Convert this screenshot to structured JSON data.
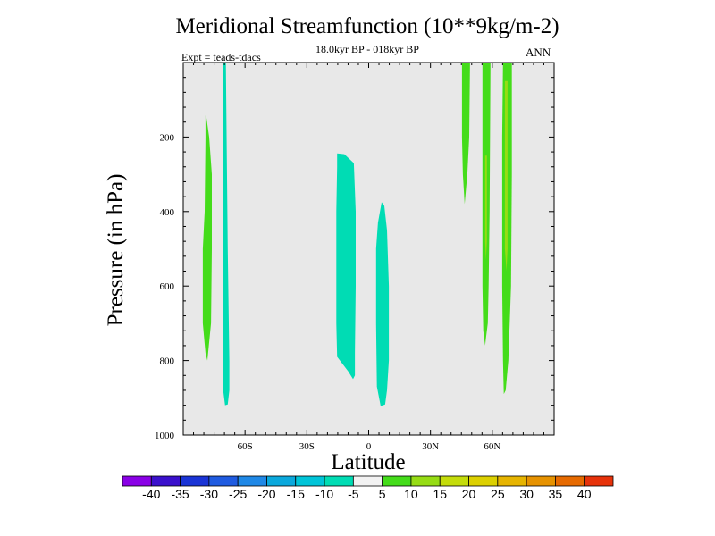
{
  "chart_data": {
    "type": "contour",
    "title": "Meridional Streamfunction (10**9kg/m-2)",
    "subtitle": "18.0kyr BP - 018kyr BP",
    "left_label": "Expt = teads-tdacs",
    "right_label": "ANN",
    "xlabel": "Latitude",
    "ylabel": "Pressure (in hPa)",
    "xlim": [
      -90,
      90
    ],
    "ylim": [
      1000,
      0
    ],
    "x_tick_values": [
      -60,
      -30,
      0,
      30,
      60
    ],
    "x_tick_labels": [
      "60S",
      "30S",
      "0",
      "30N",
      "60N"
    ],
    "y_tick_values": [
      200,
      400,
      600,
      800,
      1000
    ],
    "y_tick_labels": [
      "200",
      "400",
      "600",
      "800",
      "1000"
    ],
    "colorbar": {
      "labels": [
        "-40",
        "-35",
        "-30",
        "-25",
        "-20",
        "-15",
        "-10",
        "-5",
        "5",
        "10",
        "15",
        "20",
        "25",
        "30",
        "35",
        "40"
      ],
      "colors": [
        "#8a00e6",
        "#3a10cc",
        "#1a34d6",
        "#1f5be0",
        "#1f88e6",
        "#0aa8dc",
        "#00c4d8",
        "#00dcb4",
        "#f2f2f2",
        "#44dc1a",
        "#96dc14",
        "#c4dc0a",
        "#dcd000",
        "#e6b400",
        "#e69200",
        "#e66a00",
        "#e6320a"
      ]
    },
    "contour_regions": [
      {
        "name": "neg-high-lat-south",
        "level_range": "-10 to -5",
        "color": "#00dcb4",
        "points": [
          [
            -70.6,
            0
          ],
          [
            -69.3,
            0
          ],
          [
            -68.4,
            500
          ],
          [
            -67.6,
            800
          ],
          [
            -67.6,
            880
          ],
          [
            -68.4,
            918
          ],
          [
            -69.7,
            920
          ],
          [
            -70.6,
            880
          ],
          [
            -70.9,
            800
          ],
          [
            -70.9,
            500
          ]
        ]
      },
      {
        "name": "neg-tropics-south",
        "level_range": "-10 to -5",
        "color": "#00dcb4",
        "points": [
          [
            -15.3,
            244
          ],
          [
            -11.8,
            246
          ],
          [
            -7.2,
            270
          ],
          [
            -6.3,
            400
          ],
          [
            -6.3,
            600
          ],
          [
            -6.7,
            780
          ],
          [
            -6.7,
            840
          ],
          [
            -7.6,
            850
          ],
          [
            -9.8,
            830
          ],
          [
            -15.3,
            790
          ],
          [
            -15.7,
            700
          ],
          [
            -15.7,
            400
          ],
          [
            -15.3,
            280
          ]
        ]
      },
      {
        "name": "neg-tropics-north",
        "level_range": "-10 to -5",
        "color": "#00dcb4",
        "points": [
          [
            6.3,
            375
          ],
          [
            7.6,
            385
          ],
          [
            8.9,
            450
          ],
          [
            9.8,
            600
          ],
          [
            9.8,
            800
          ],
          [
            8.9,
            880
          ],
          [
            8.0,
            918
          ],
          [
            5.8,
            922
          ],
          [
            4.0,
            870
          ],
          [
            3.6,
            700
          ],
          [
            3.6,
            500
          ],
          [
            4.5,
            430
          ]
        ]
      },
      {
        "name": "pos-south",
        "level_range": "5 to 10",
        "color": "#44dc1a",
        "points": [
          [
            -79.2,
            142
          ],
          [
            -78.7,
            150
          ],
          [
            -77.4,
            200
          ],
          [
            -76.1,
            300
          ],
          [
            -76.1,
            500
          ],
          [
            -76.5,
            700
          ],
          [
            -78.3,
            800
          ],
          [
            -79.2,
            780
          ],
          [
            -80.5,
            700
          ],
          [
            -80.5,
            500
          ],
          [
            -79.6,
            400
          ],
          [
            -79.2,
            200
          ]
        ]
      },
      {
        "name": "pos-north-1",
        "level_range": "5 to 10",
        "color": "#44dc1a",
        "points": [
          [
            45.3,
            0
          ],
          [
            49.2,
            0
          ],
          [
            48.8,
            200
          ],
          [
            47.9,
            300
          ],
          [
            46.6,
            380
          ],
          [
            45.7,
            300
          ],
          [
            45.3,
            200
          ]
        ]
      },
      {
        "name": "pos-north-2",
        "level_range": "5 to 10",
        "color": "#44dc1a",
        "points": [
          [
            55.2,
            0
          ],
          [
            59.1,
            0
          ],
          [
            58.7,
            400
          ],
          [
            58.2,
            600
          ],
          [
            57.8,
            700
          ],
          [
            56.9,
            740
          ],
          [
            56.5,
            760
          ],
          [
            55.6,
            720
          ],
          [
            55.2,
            600
          ],
          [
            55.2,
            300
          ]
        ]
      },
      {
        "name": "pos-north-3",
        "level_range": "5 to 10",
        "color": "#44dc1a",
        "points": [
          [
            65.2,
            0
          ],
          [
            69.5,
            0
          ],
          [
            69.5,
            300
          ],
          [
            69.1,
            600
          ],
          [
            67.8,
            800
          ],
          [
            66.5,
            880
          ],
          [
            65.6,
            890
          ],
          [
            65.2,
            800
          ],
          [
            64.8,
            600
          ],
          [
            64.8,
            200
          ]
        ]
      },
      {
        "name": "pos-north-2-core",
        "level_range": "10 to 15",
        "color": "#96dc14",
        "points": [
          [
            56.5,
            250
          ],
          [
            57.4,
            250
          ],
          [
            57.4,
            480
          ],
          [
            56.9,
            530
          ],
          [
            56.5,
            480
          ]
        ]
      },
      {
        "name": "pos-north-3-core",
        "level_range": "10 to 15",
        "color": "#96dc14",
        "points": [
          [
            66.1,
            50
          ],
          [
            67.4,
            50
          ],
          [
            67.4,
            500
          ],
          [
            66.9,
            560
          ],
          [
            66.1,
            500
          ]
        ]
      }
    ]
  }
}
